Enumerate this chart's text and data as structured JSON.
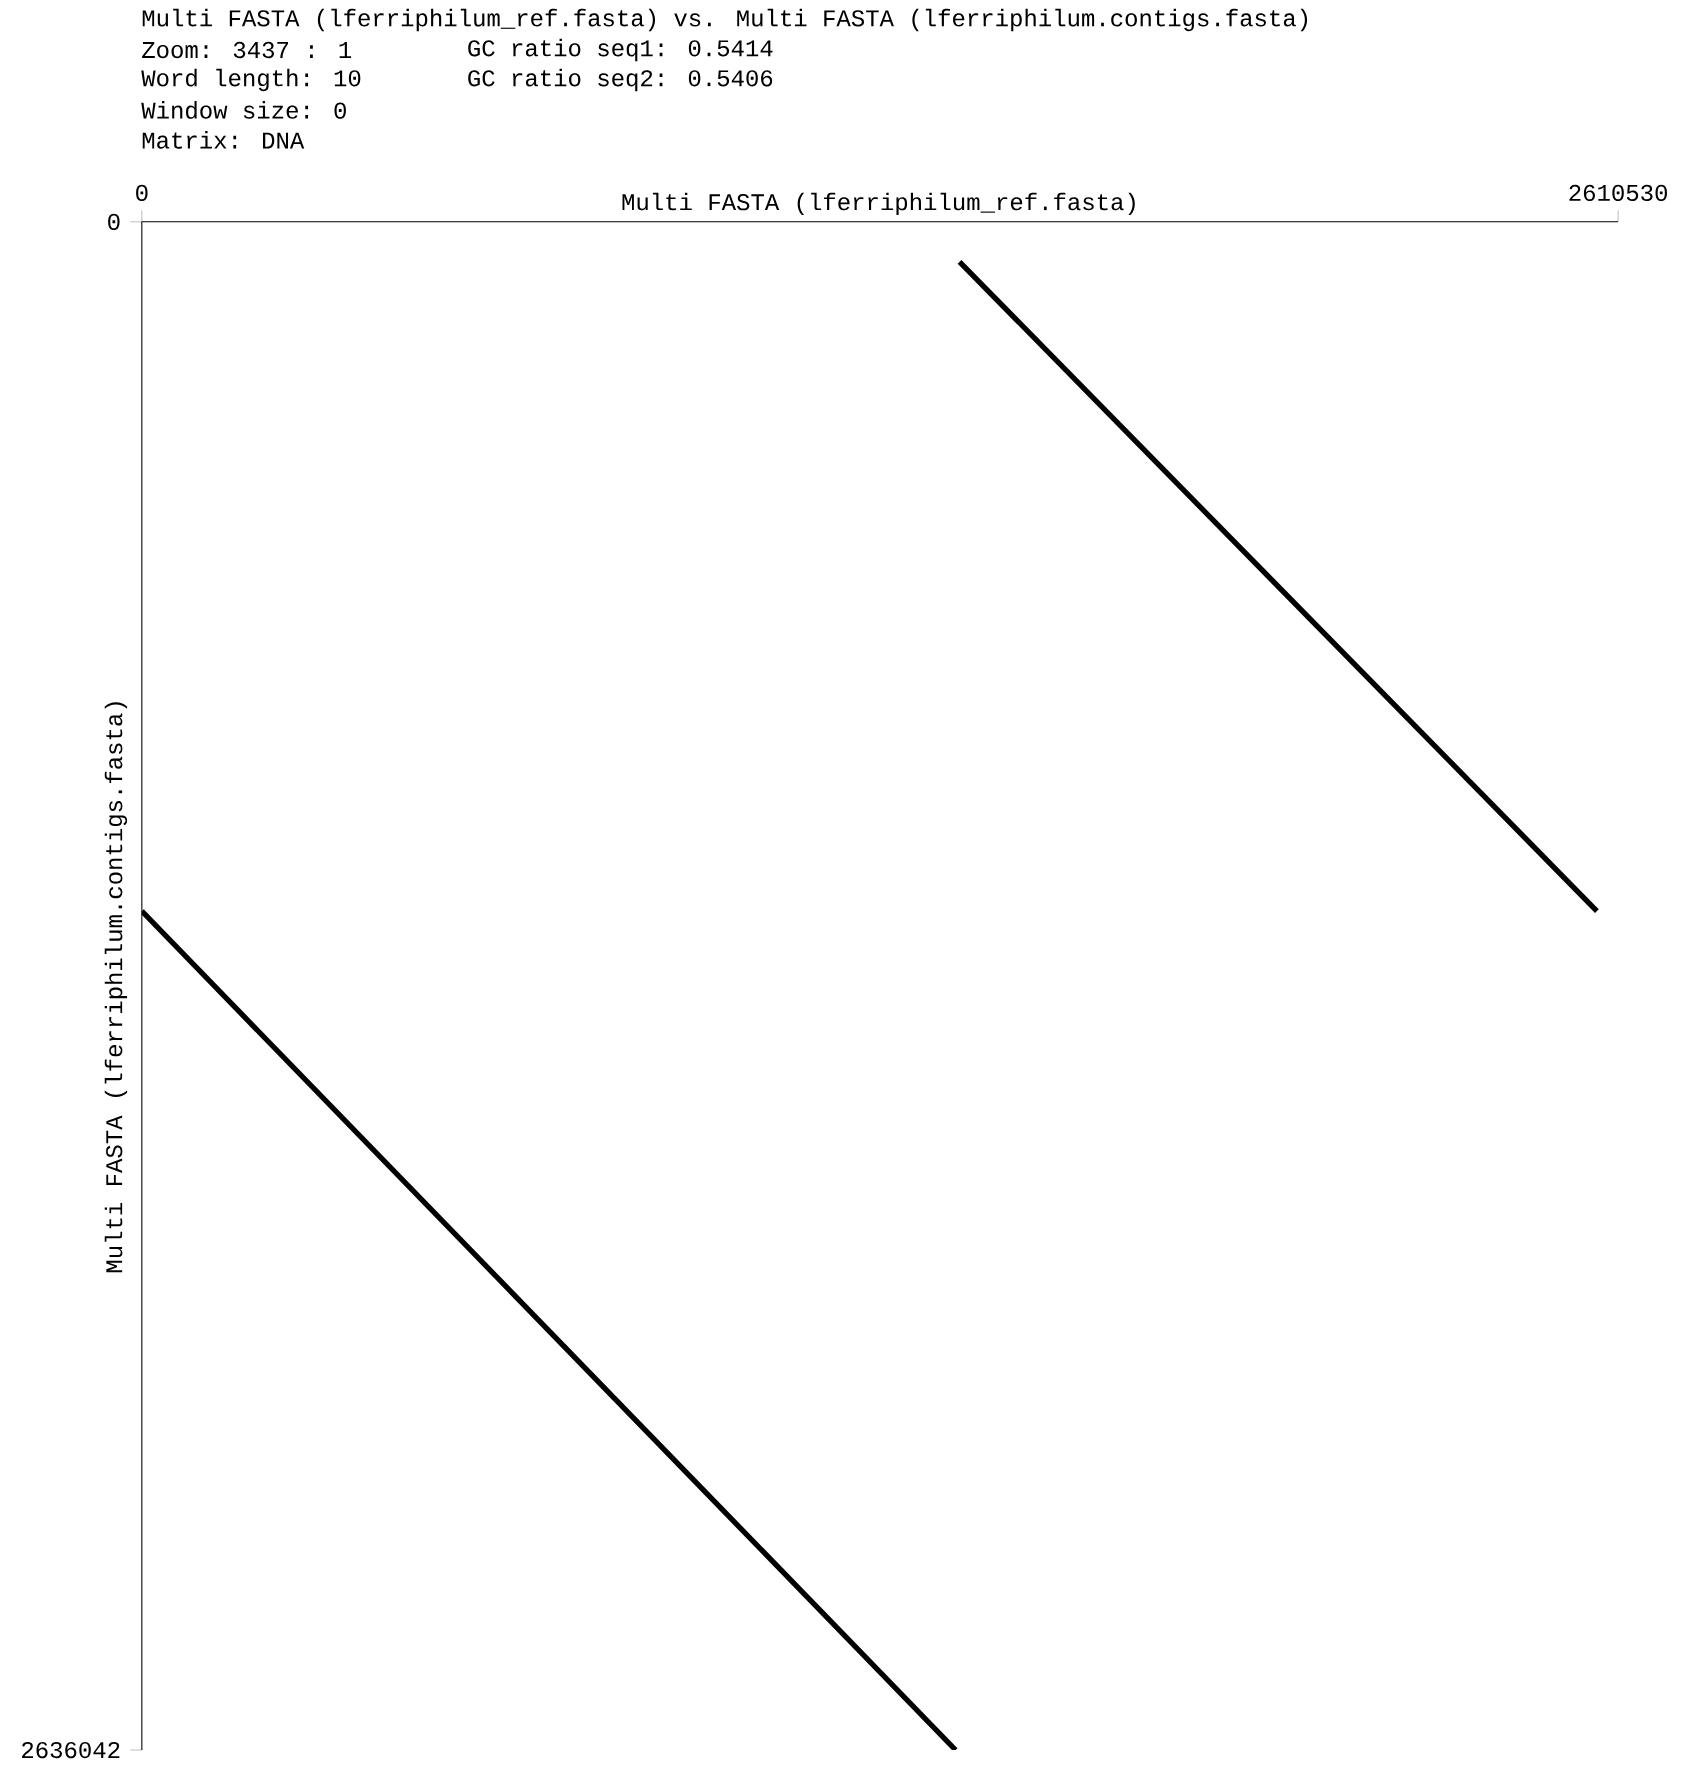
{
  "chart_data": {
    "type": "line",
    "title": "Multi FASTA (lferriphilum_ref.fasta) vs. Multi FASTA (lferriphilum.contigs.fasta)",
    "xlabel": "Multi FASTA (lferriphilum_ref.fasta)",
    "ylabel": "Multi FASTA (lferriphilum.contigs.fasta)",
    "annotations": [
      "Zoom: 3437 : 1",
      "Word length: 10",
      "Window size: 0",
      "Matrix: DNA",
      "GC ratio seq1: 0.5414",
      "GC ratio seq2: 0.5406"
    ],
    "xlim": [
      0,
      2610530
    ],
    "ylim": [
      2636042,
      0
    ],
    "xticks": [
      0,
      2610530
    ],
    "yticks": [
      0,
      2636042
    ],
    "series": [
      {
        "color": "#000000",
        "x": [
          1446000,
          2573000
        ],
        "values": [
          69000,
          1189000
        ]
      },
      {
        "color": "#000000",
        "x": [
          0,
          1439000
        ],
        "values": [
          1189000,
          2636000
        ]
      }
    ],
    "marker": "none",
    "line_style": "solid",
    "grid": false
  }
}
